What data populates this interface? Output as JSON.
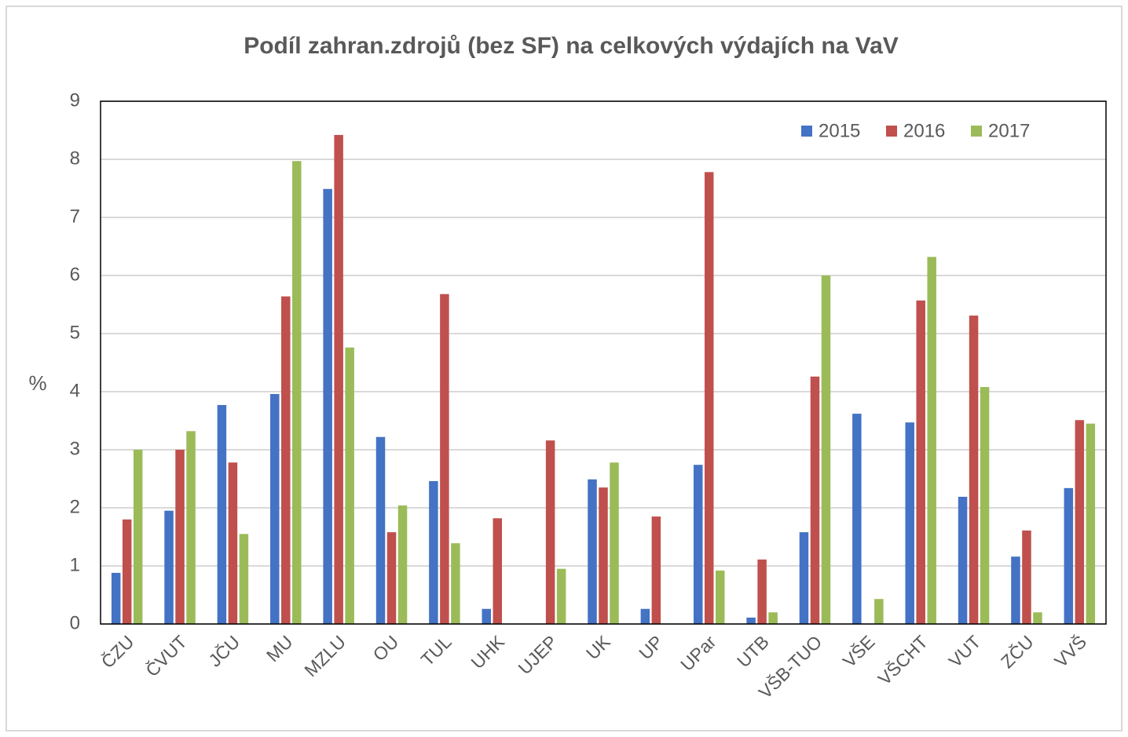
{
  "chart_data": {
    "type": "bar",
    "title": "Podíl zahran.zdrojů (bez SF) na celkových výdajích na VaV",
    "y_label": "%",
    "categories": [
      "ČZU",
      "ČVUT",
      "JČU",
      "MU",
      "MZLU",
      "OU",
      "TUL",
      "UHK",
      "UJEP",
      "UK",
      "UP",
      "UPar",
      "UTB",
      "VŠB-TUO",
      "VŠE",
      "VŠCHT",
      "VUT",
      "ZČU",
      "VVŠ"
    ],
    "series": [
      {
        "name": "2015",
        "color": "#4472c4",
        "values": [
          0.88,
          1.95,
          3.77,
          3.96,
          7.49,
          3.22,
          2.46,
          0.26,
          0,
          2.49,
          0.26,
          2.74,
          0.11,
          1.58,
          3.62,
          3.47,
          2.19,
          1.16,
          2.34
        ]
      },
      {
        "name": "2016",
        "color": "#c0504d",
        "values": [
          1.8,
          3.0,
          2.78,
          5.64,
          8.42,
          1.58,
          5.68,
          1.82,
          3.16,
          2.35,
          1.85,
          7.78,
          1.11,
          4.26,
          0,
          5.57,
          5.31,
          1.61,
          3.51
        ]
      },
      {
        "name": "2017",
        "color": "#9bbb59",
        "values": [
          3.0,
          3.32,
          1.55,
          7.97,
          4.76,
          2.04,
          1.39,
          0,
          0.95,
          2.78,
          0,
          0.92,
          0.2,
          6.0,
          0.43,
          6.32,
          4.08,
          0.2,
          3.45
        ]
      }
    ],
    "ylim": [
      0,
      9
    ],
    "yticks": [
      0,
      1,
      2,
      3,
      4,
      5,
      6,
      7,
      8,
      9
    ],
    "grid": true,
    "legend": "top-right"
  }
}
